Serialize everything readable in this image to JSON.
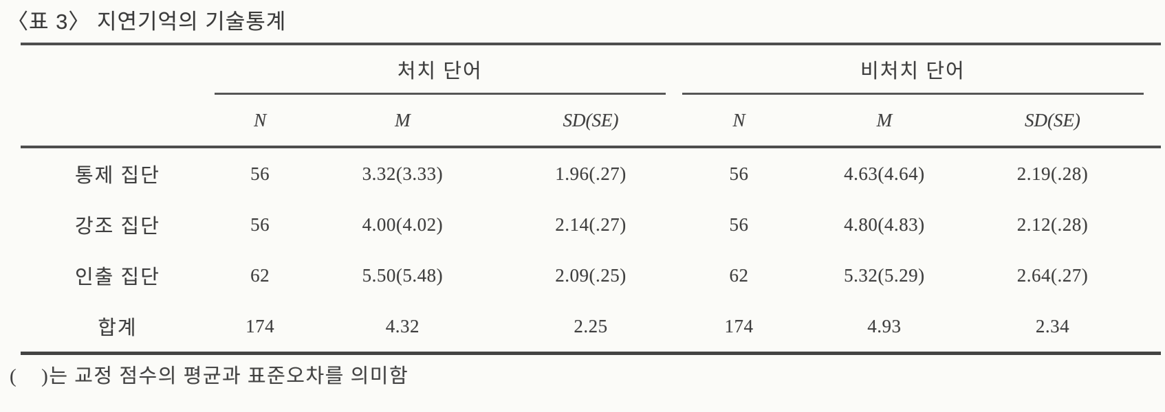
{
  "page": {
    "title": "〈표 3〉 지연기억의 기술통계",
    "footnote": "(    )는 교정 점수의 평균과 표준오차를 의미함"
  },
  "colors": {
    "background": "#fbfbf8",
    "text": "#3e3e3e",
    "rule": "#4e4e4e"
  },
  "table": {
    "col_groups": [
      {
        "label": "처치 단어"
      },
      {
        "label": "비처치 단어"
      }
    ],
    "sub_headers": [
      "N",
      "M",
      "SD(SE)",
      "N",
      "M",
      "SD(SE)"
    ],
    "rows": [
      {
        "label": "통제 집단",
        "cells": [
          "56",
          "3.32(3.33)",
          "1.96(.27)",
          "56",
          "4.63(4.64)",
          "2.19(.28)"
        ]
      },
      {
        "label": "강조 집단",
        "cells": [
          "56",
          "4.00(4.02)",
          "2.14(.27)",
          "56",
          "4.80(4.83)",
          "2.12(.28)"
        ]
      },
      {
        "label": "인출 집단",
        "cells": [
          "62",
          "5.50(5.48)",
          "2.09(.25)",
          "62",
          "5.32(5.29)",
          "2.64(.27)"
        ]
      },
      {
        "label": "합계",
        "cells": [
          "174",
          "4.32",
          "2.25",
          "174",
          "4.93",
          "2.34"
        ]
      }
    ]
  }
}
